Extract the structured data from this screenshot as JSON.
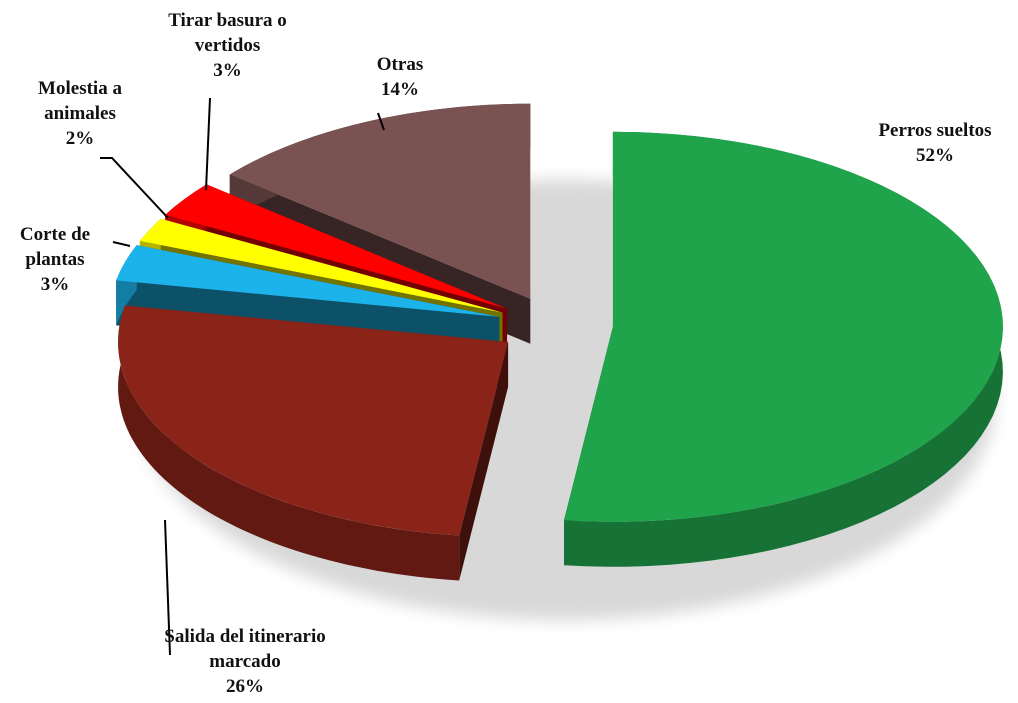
{
  "chart_data": {
    "type": "pie",
    "categories": [
      "Perros sueltos",
      "Salida del itinerario marcado",
      "Corte de plantas",
      "Molestia a animales",
      "Tirar basura  o vertidos",
      "Otras"
    ],
    "values": [
      52,
      26,
      3,
      2,
      3,
      14
    ],
    "value_labels": [
      "52%",
      "26%",
      "3%",
      "2%",
      "3%",
      "14%"
    ],
    "colors": [
      "#1fa34b",
      "#8a2419",
      "#1cb3ea",
      "#ffff00",
      "#ff0000",
      "#7a5252"
    ]
  }
}
